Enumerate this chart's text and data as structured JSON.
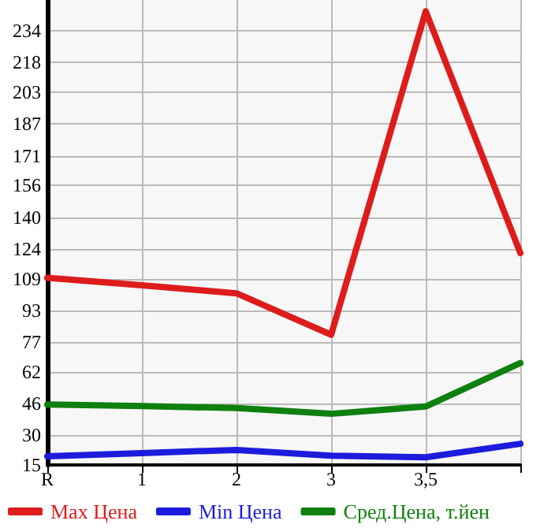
{
  "chart_data": {
    "type": "line",
    "categories": [
      "R",
      "1",
      "2",
      "3",
      "3,5",
      null
    ],
    "series": [
      {
        "name": "Max Цена",
        "color": "#dd1c1c",
        "values": [
          109.4,
          105.7,
          101.6,
          80.7,
          243.9,
          121.9
        ]
      },
      {
        "name": "Min Цена",
        "color": "#1c1cdd",
        "values": [
          19.4,
          21,
          22.6,
          19.7,
          18.9,
          25.7
        ]
      },
      {
        "name": "Сред.Цена, т.йен",
        "color": "#0e800e",
        "values": [
          45.5,
          44.7,
          43.7,
          40.8,
          44.5,
          66.4
        ]
      }
    ],
    "ylim": [
      15,
      249.6
    ],
    "yticks": [
      15,
      30,
      46,
      62,
      77,
      93,
      109,
      124,
      140,
      156,
      171,
      187,
      203,
      218,
      234
    ],
    "grid": true,
    "legend": "bottom",
    "marker": "none",
    "line_style": "solid"
  }
}
